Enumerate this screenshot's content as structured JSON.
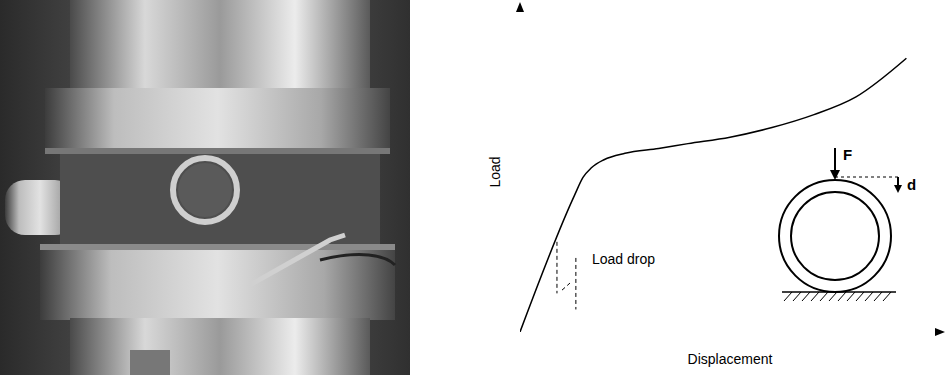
{
  "chart_data": {
    "type": "line",
    "x_label": "Displacement",
    "y_label": "Load",
    "x": [
      0,
      13,
      15,
      17,
      20,
      25,
      33,
      40,
      50,
      60,
      70,
      80,
      92
    ],
    "values": [
      0,
      42.5,
      48,
      51,
      53.5,
      55.5,
      57,
      58.5,
      60.5,
      63.5,
      67.5,
      73,
      85
    ],
    "xlim": [
      0,
      100
    ],
    "ylim": [
      0,
      100
    ],
    "xticks": [],
    "yticks": [],
    "tick_labels": false,
    "grid": false,
    "color": "#000000",
    "line_style": "solid",
    "annotations": [
      {
        "text": "Load drop"
      }
    ],
    "load_drop": [
      {
        "x": [
          8.8,
          8.8
        ],
        "y": [
          28,
          12
        ]
      },
      {
        "x": [
          10,
          11.9
        ],
        "y": [
          13,
          15.2
        ]
      },
      {
        "x": [
          13.3,
          13.3
        ],
        "y": [
          23,
          7
        ]
      }
    ],
    "inset": {
      "force_label": "F",
      "displacement_label": "d"
    }
  }
}
